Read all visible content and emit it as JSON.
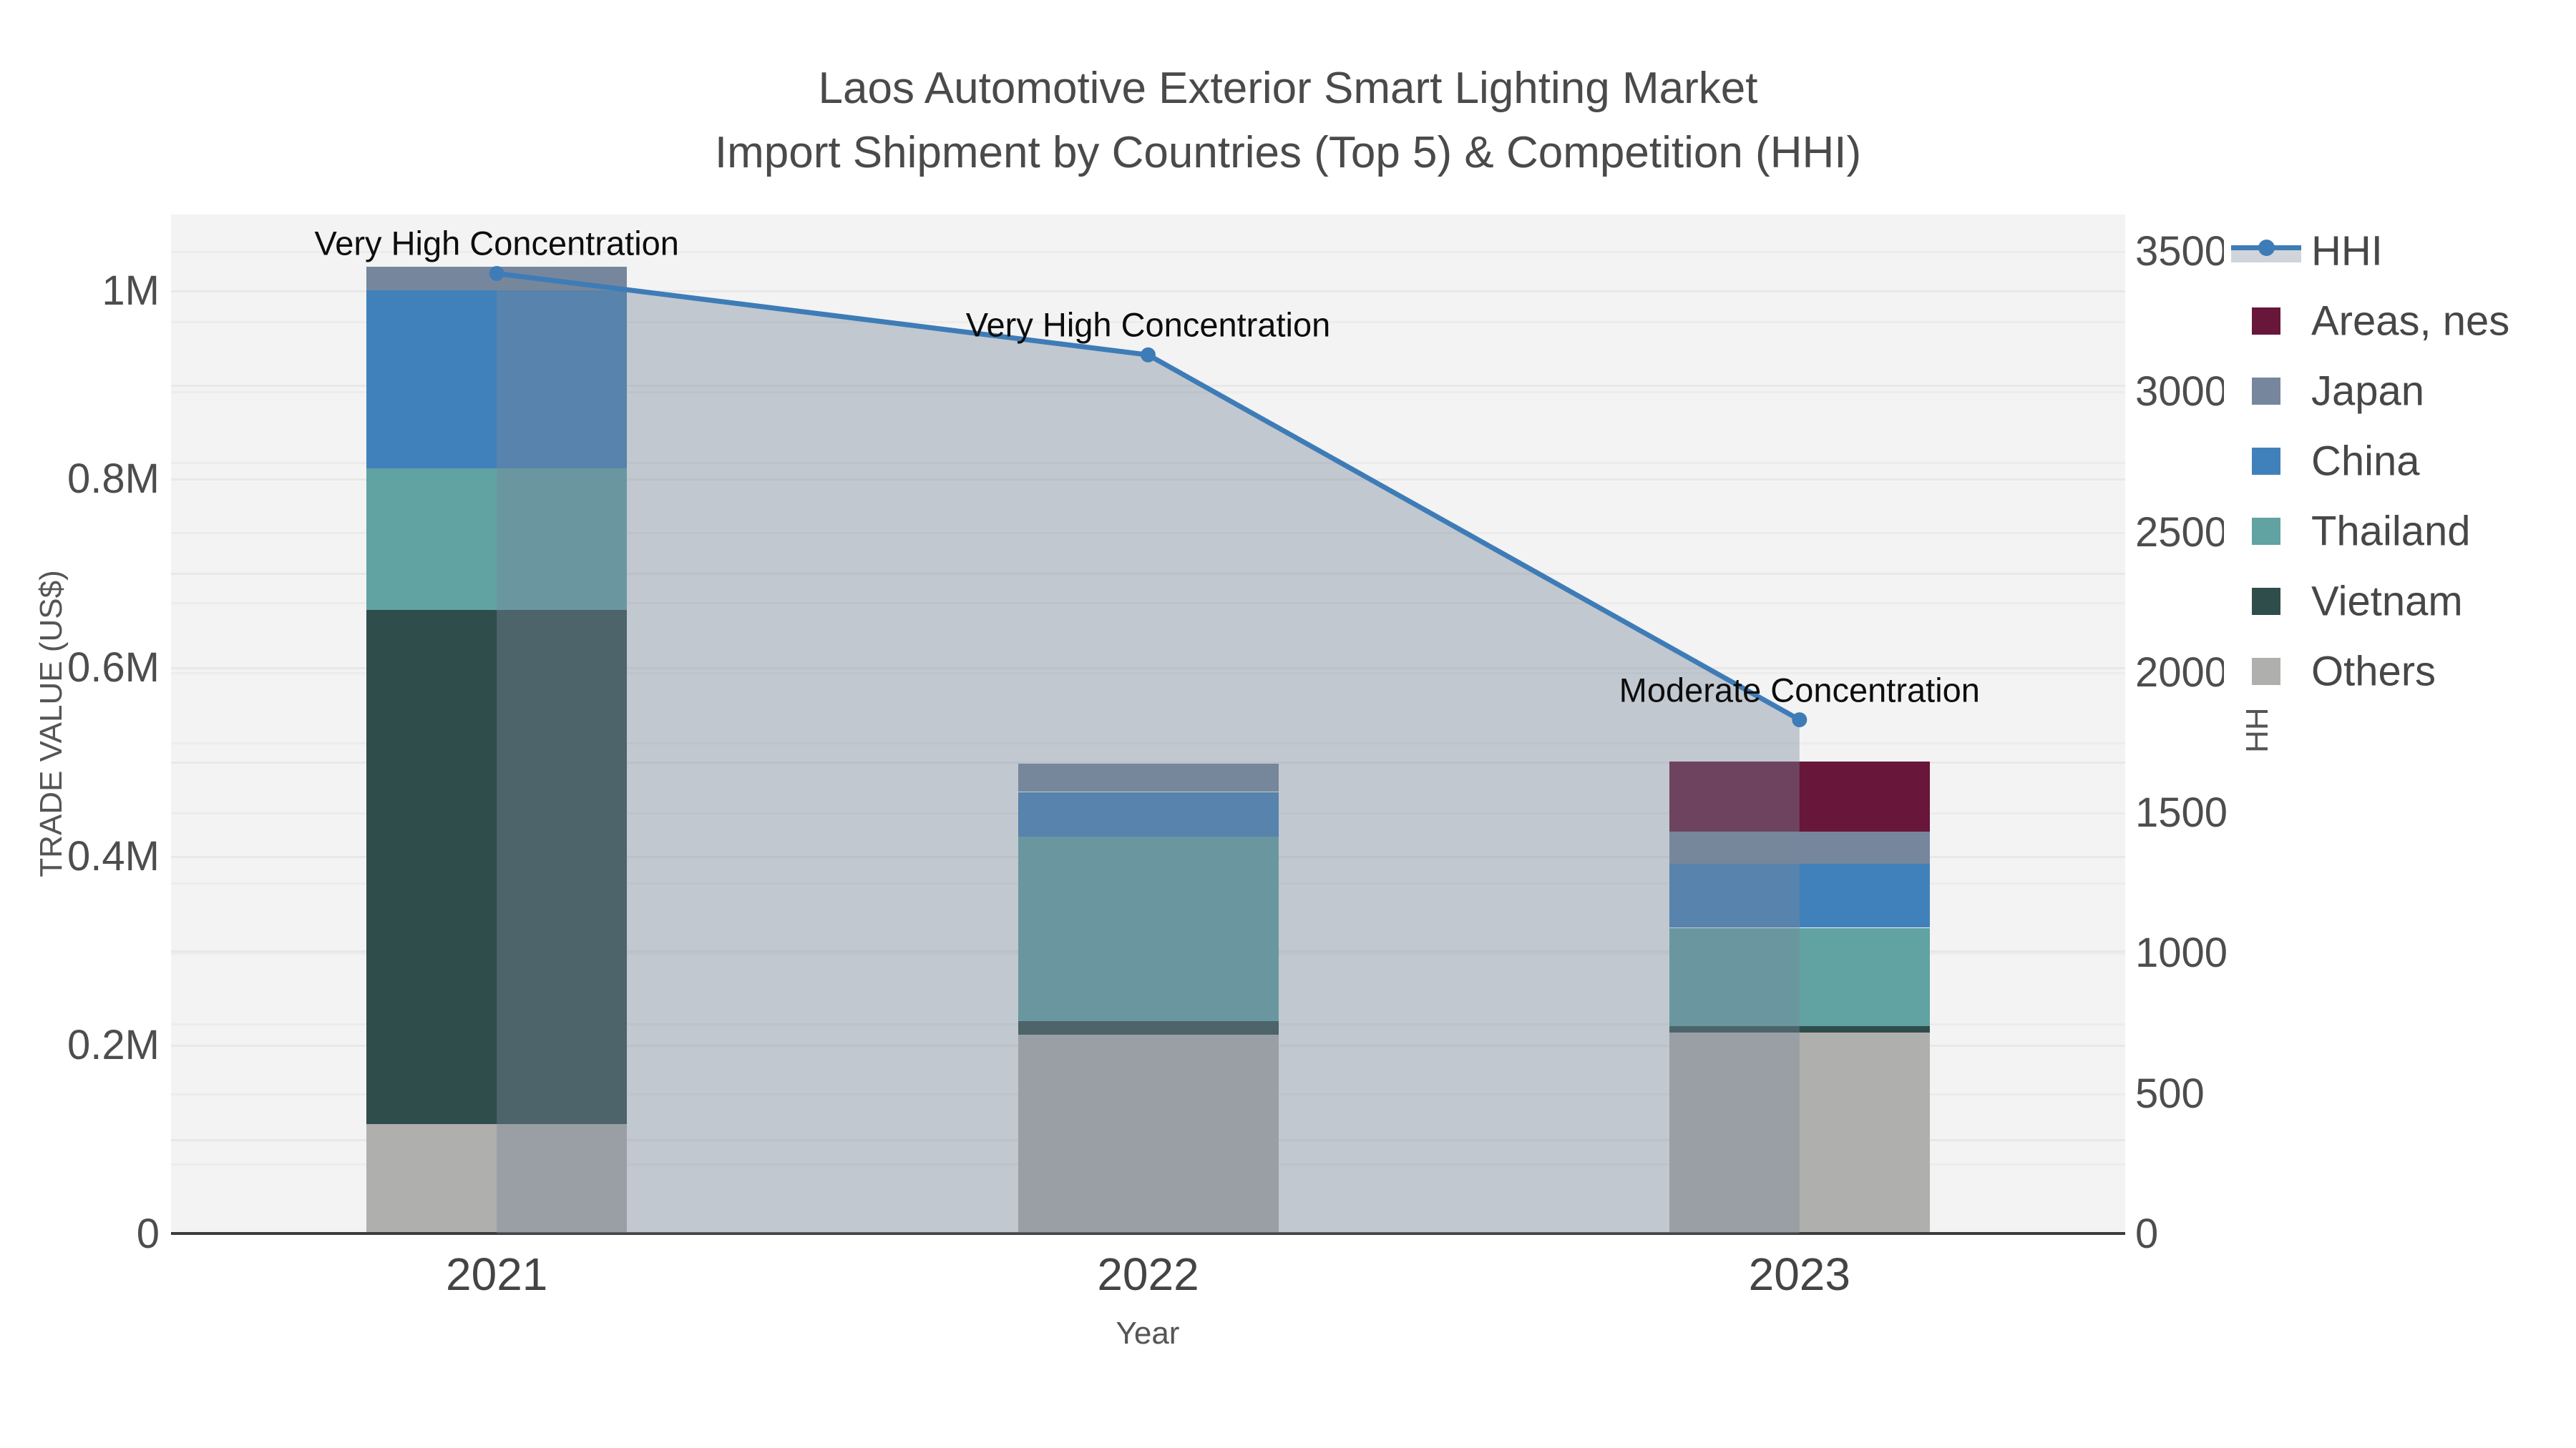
{
  "title": {
    "line1": "Laos Automotive Exterior Smart Lighting Market",
    "line2": "Import Shipment by Countries (Top 5) & Competition (HHI)"
  },
  "chart_data": {
    "type": "bar+line",
    "categories": [
      "2021",
      "2022",
      "2023"
    ],
    "stack_series": [
      {
        "name": "Others",
        "color": "#AFAFAD",
        "values": [
          116000,
          211000,
          213000
        ]
      },
      {
        "name": "Vietnam",
        "color": "#2F4D4B",
        "values": [
          545000,
          14000,
          7000
        ]
      },
      {
        "name": "Thailand",
        "color": "#61A2A3",
        "values": [
          150000,
          196000,
          104000
        ]
      },
      {
        "name": "China",
        "color": "#4181BB",
        "values": [
          189000,
          47000,
          68000
        ]
      },
      {
        "name": "Japan",
        "color": "#76879D",
        "values": [
          25000,
          30000,
          34000
        ]
      },
      {
        "name": "Areas, nes",
        "color": "#68163A",
        "values": [
          0,
          0,
          74000
        ]
      }
    ],
    "line_series": {
      "name": "HHI",
      "color": "#3E7CB7",
      "fill_color": "rgba(119,136,153,0.40)",
      "values": [
        3420,
        3130,
        1830
      ]
    },
    "annotations": [
      {
        "category_index": 0,
        "text": "Very High Concentration"
      },
      {
        "category_index": 1,
        "text": "Very High Concentration"
      },
      {
        "category_index": 2,
        "text": "Moderate Concentration"
      }
    ],
    "y_left": {
      "title": "TRADE VALUE (US$)",
      "range": [
        0,
        1080000
      ],
      "ticks": [
        {
          "value": 0,
          "label": "0"
        },
        {
          "value": 200000,
          "label": "0.2M"
        },
        {
          "value": 400000,
          "label": "0.4M"
        },
        {
          "value": 600000,
          "label": "0.6M"
        },
        {
          "value": 800000,
          "label": "0.8M"
        },
        {
          "value": 1000000,
          "label": "1M"
        }
      ]
    },
    "y_right": {
      "title": "HHI",
      "range": [
        0,
        3630
      ],
      "ticks": [
        {
          "value": 0,
          "label": "0"
        },
        {
          "value": 500,
          "label": "500"
        },
        {
          "value": 1000,
          "label": "1000"
        },
        {
          "value": 1500,
          "label": "1500"
        },
        {
          "value": 2000,
          "label": "2000"
        },
        {
          "value": 2500,
          "label": "2500"
        },
        {
          "value": 3000,
          "label": "3000"
        },
        {
          "value": 3500,
          "label": "3500"
        }
      ]
    },
    "x_axis": {
      "title": "Year"
    },
    "legend": [
      {
        "name": "HHI",
        "color": "#3E7CB7",
        "type": "line",
        "fill_color": "rgba(119,136,153,0.35)"
      },
      {
        "name": "Areas, nes",
        "color": "#68163A",
        "type": "swatch"
      },
      {
        "name": "Japan",
        "color": "#76879D",
        "type": "swatch"
      },
      {
        "name": "China",
        "color": "#4181BB",
        "type": "swatch"
      },
      {
        "name": "Thailand",
        "color": "#61A2A3",
        "type": "swatch"
      },
      {
        "name": "Vietnam",
        "color": "#2F4D4B",
        "type": "swatch"
      },
      {
        "name": "Others",
        "color": "#AFAFAD",
        "type": "swatch"
      }
    ],
    "layout_hints": {
      "grid": "on",
      "legend_position": "right",
      "plot_bg": "#f3f3f3"
    }
  }
}
